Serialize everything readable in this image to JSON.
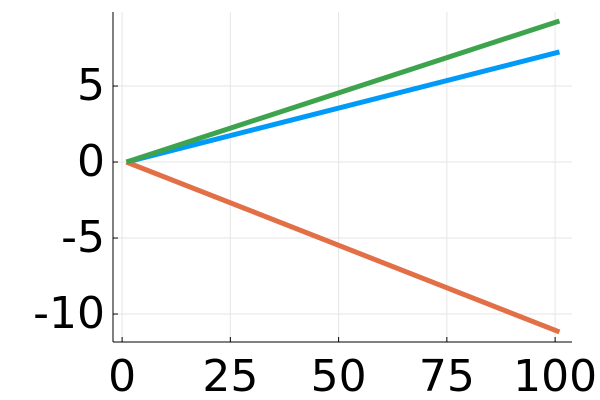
{
  "chart_data": {
    "type": "line",
    "x": [
      1,
      101
    ],
    "series": [
      {
        "color": "#009af9",
        "values": [
          0,
          7.24
        ]
      },
      {
        "color": "#e26f46",
        "values": [
          0,
          -11.18
        ]
      },
      {
        "color": "#3da44d",
        "values": [
          0,
          9.28
        ]
      }
    ],
    "xlim": [
      -2.1,
      103.9
    ],
    "xticks": [
      0,
      25,
      50,
      75,
      100
    ],
    "ylim": [
      -11.84,
      9.87
    ],
    "yticks": [
      -10,
      -5,
      0,
      5
    ],
    "grid": true
  }
}
